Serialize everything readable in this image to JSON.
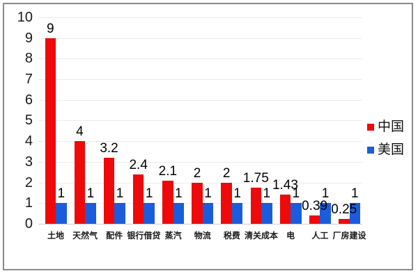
{
  "chart_data": {
    "type": "bar",
    "title": "",
    "xlabel": "",
    "ylabel": "",
    "categories": [
      "土地",
      "天然气",
      "配件",
      "银行借贷",
      "蒸汽",
      "物流",
      "税费",
      "清关成本",
      "电",
      "人工",
      "厂房建设"
    ],
    "series": [
      {
        "name": "中国",
        "color": "#ee0a0a",
        "values": [
          9,
          4,
          3.2,
          2.4,
          2.1,
          2,
          2,
          1.75,
          1.43,
          0.39,
          0.25
        ]
      },
      {
        "name": "美国",
        "color": "#1b5cdb",
        "values": [
          1,
          1,
          1,
          1,
          1,
          1,
          1,
          1,
          1,
          1,
          1
        ]
      }
    ],
    "ylim": [
      0,
      10
    ],
    "ytick_step": 1,
    "yticks": [
      "0",
      "1",
      "2",
      "3",
      "4",
      "5",
      "6",
      "7",
      "8",
      "9",
      "10"
    ],
    "grid": true,
    "legend_position": "right",
    "data_labels_shown": true
  },
  "colors": {
    "china_red": "#ee0a0a",
    "usa_blue": "#1b5cdb",
    "frame_border": "#8a8a8a",
    "gridline": "#ececec"
  }
}
